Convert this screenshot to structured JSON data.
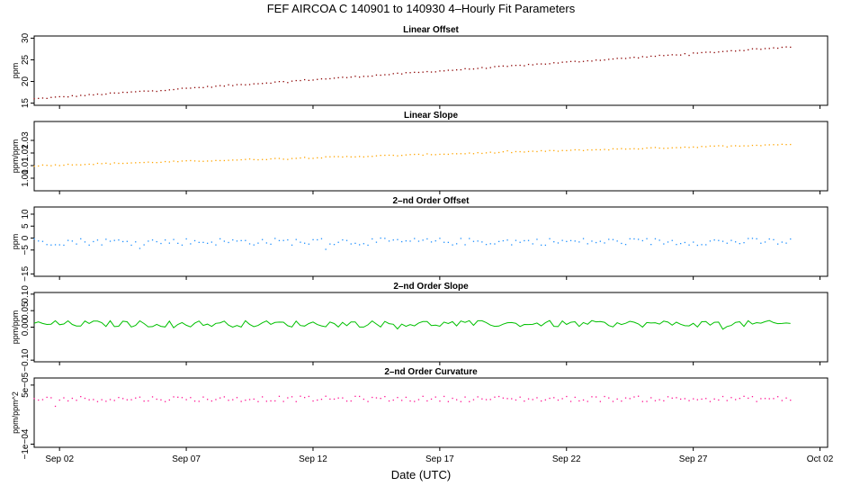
{
  "title": "FEF   AIRCOA C   140901 to 140930   4–Hourly Fit Parameters",
  "xlabel": "Date (UTC)",
  "x_ticks": [
    "Sep 02",
    "Sep 07",
    "Sep 12",
    "Sep 17",
    "Sep 22",
    "Sep 27",
    "Oct 02"
  ],
  "chart_data": [
    {
      "type": "scatter",
      "title": "Linear Offset",
      "ylabel": "ppm",
      "ylim": [
        14.5,
        30.5
      ],
      "yticks": [
        "15",
        "20",
        "25",
        "30"
      ],
      "color": "#8b0000",
      "series": [
        {
          "x_start": "2014-09-01 00:00",
          "x_end": "2014-09-30 20:00",
          "step_hours": 4,
          "start": 16.0,
          "end": 28.0,
          "noise": 0.15
        }
      ]
    },
    {
      "type": "scatter",
      "title": "Linear Slope",
      "ylabel": "ppm/ppm",
      "ylim": [
        0.99,
        1.045
      ],
      "yticks": [
        "1.00",
        "1.01",
        "1.02",
        "1.03"
      ],
      "color": "#ffa500",
      "series": [
        {
          "x_start": "2014-09-01 00:00",
          "x_end": "2014-09-30 20:00",
          "step_hours": 4,
          "start": 1.01,
          "end": 1.027,
          "noise": 0.0005
        }
      ]
    },
    {
      "type": "scatter",
      "title": "2–nd Order Offset",
      "ylabel": "ppm",
      "ylim": [
        -16,
        13
      ],
      "yticks": [
        "−15",
        "−5",
        "0",
        "5",
        "10"
      ],
      "color": "#1e90ff",
      "series": [
        {
          "x_start": "2014-09-01 00:00",
          "x_end": "2014-09-30 20:00",
          "step_hours": 4,
          "start": -1.5,
          "end": -1.5,
          "noise": 1.5
        }
      ]
    },
    {
      "type": "line",
      "title": "2–nd Order Slope",
      "ylabel": "ppm/ppm",
      "ylim": [
        -0.105,
        0.105
      ],
      "yticks": [
        "−0.10",
        "0.00",
        "0.05",
        "0.10"
      ],
      "color": "#00c000",
      "series": [
        {
          "x_start": "2014-09-01 00:00",
          "x_end": "2014-09-30 20:00",
          "step_hours": 4,
          "start": 0.01,
          "end": 0.01,
          "noise": 0.01
        }
      ]
    },
    {
      "type": "scatter",
      "title": "2–nd Order Curvature",
      "ylabel": "ppm/ppm^2",
      "ylim": [
        -0.000108,
        6.8e-05
      ],
      "yticks": [
        "−1e−04",
        "5e−05"
      ],
      "color": "#ff1493",
      "series": [
        {
          "x_start": "2014-09-01 00:00",
          "x_end": "2014-09-30 20:00",
          "step_hours": 4,
          "start": 1.5e-05,
          "end": 1.5e-05,
          "noise": 7e-06
        }
      ]
    }
  ]
}
